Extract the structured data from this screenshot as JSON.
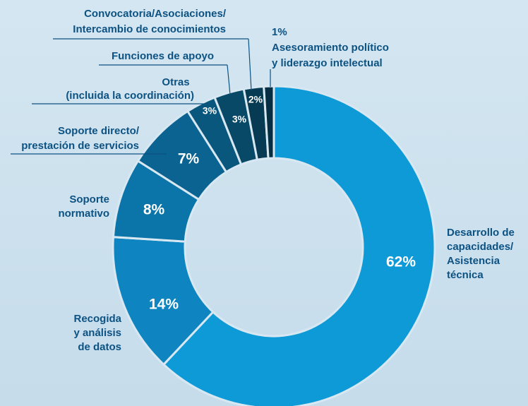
{
  "chart_data": {
    "type": "donut",
    "categories": [
      [
        "Desarrollo de",
        "capacidades/",
        "Asistencia",
        "técnica"
      ],
      [
        "Recogida",
        "y análisis",
        "de datos"
      ],
      [
        "Soporte",
        "normativo"
      ],
      [
        "Soporte directo/",
        "prestación de servicios"
      ],
      [
        "Otras",
        "(incluida la coordinación)"
      ],
      [
        "Funciones de apoyo"
      ],
      [
        "Convocatoria/Asociaciones/",
        "Intercambio  de conocimientos"
      ],
      [
        "Asesoramiento político",
        "y liderazgo  intelectual"
      ]
    ],
    "values": [
      62,
      14,
      8,
      7,
      3,
      3,
      2,
      1
    ],
    "value_labels": [
      "62%",
      "14%",
      "8%",
      "7%",
      "3%",
      "3%",
      "2%",
      "1%"
    ],
    "colors": [
      "#0d9ad7",
      "#0e85c0",
      "#0b74a9",
      "#0a6390",
      "#09577c",
      "#084968",
      "#073b54",
      "#062e42"
    ]
  }
}
